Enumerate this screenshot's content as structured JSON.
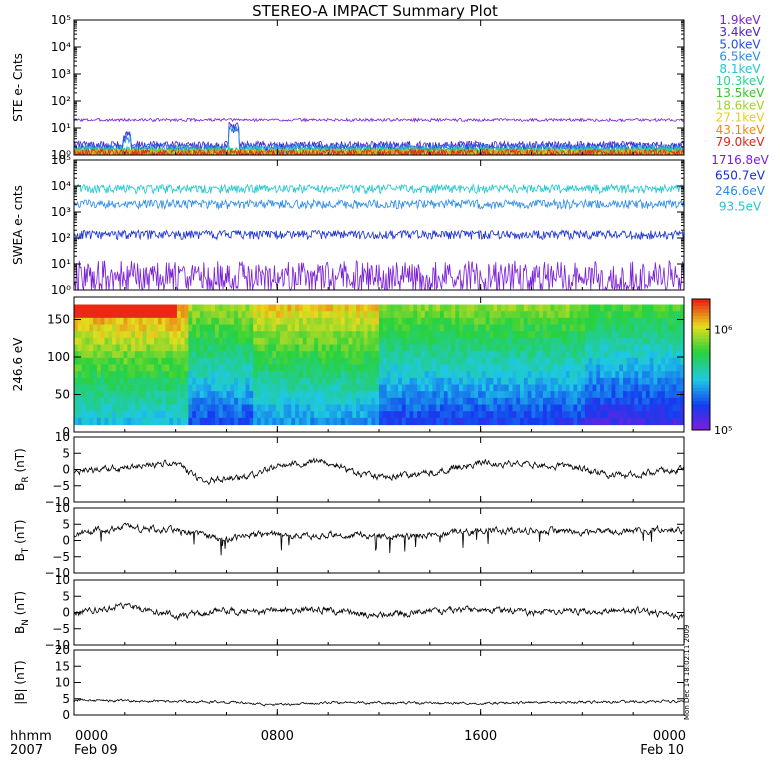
{
  "chart_data": {
    "type": "multi-panel time series",
    "title": "STEREO-A IMPACT Summary Plot",
    "x_axis": {
      "start": "2007-02-09 00:00",
      "end": "2007-02-10 00:00",
      "tick_labels": [
        "0000",
        "0800",
        "1600",
        "0000"
      ],
      "tick_hours": [
        0,
        8,
        16,
        24
      ],
      "date_labels": [
        "Feb 09",
        "Feb 10"
      ],
      "unit_label": "hhmm",
      "year_label": "2007"
    },
    "panels": [
      {
        "id": "ste",
        "ylabel": "STE e- Cnts",
        "scale": "log",
        "ylim": [
          1,
          100000
        ],
        "tick_labels": [
          "10⁰",
          "10¹",
          "10²",
          "10³",
          "10⁴",
          "10⁵"
        ],
        "series": [
          {
            "name": "1.9keV",
            "color": "#7a1fd6",
            "level": 20
          },
          {
            "name": "3.4keV",
            "color": "#4b22c8",
            "level": 2.0
          },
          {
            "name": "5.0keV",
            "color": "#1f4fe0",
            "level": 1.7
          },
          {
            "name": "6.5keV",
            "color": "#2a8be6",
            "level": 1.5
          },
          {
            "name": "8.1keV",
            "color": "#21c6cf",
            "level": 1.3
          },
          {
            "name": "10.3keV",
            "color": "#27d58c",
            "level": 1.15
          },
          {
            "name": "13.5keV",
            "color": "#33c92c",
            "level": 1.1
          },
          {
            "name": "18.6keV",
            "color": "#9fd421",
            "level": 1.05
          },
          {
            "name": "27.1keV",
            "color": "#e1d01e",
            "level": 1.02
          },
          {
            "name": "43.1keV",
            "color": "#ee8a10",
            "level": 1.01
          },
          {
            "name": "79.0keV",
            "color": "#e0241b",
            "level": 1.0
          }
        ]
      },
      {
        "id": "swea",
        "ylabel": "SWEA e- cnts",
        "scale": "log",
        "ylim": [
          1,
          100000
        ],
        "tick_labels": [
          "10⁰",
          "10¹",
          "10²",
          "10³",
          "10⁴",
          "10⁵"
        ],
        "series": [
          {
            "name": "1716.8eV",
            "color": "#7a1fd6",
            "level": 3
          },
          {
            "name": "650.7eV",
            "color": "#1a2fd0",
            "level": 120
          },
          {
            "name": "246.6eV",
            "color": "#2a8be6",
            "level": 1800
          },
          {
            "name": "93.5eV",
            "color": "#21c6cf",
            "level": 7000
          }
        ]
      },
      {
        "id": "pad",
        "ylabel": "246.6 eV",
        "type": "heatmap",
        "scale": "linear",
        "ylim": [
          0,
          180
        ],
        "tick_labels": [
          "0",
          "50",
          "100",
          "150"
        ],
        "tick_values": [
          0,
          50,
          100,
          150
        ],
        "colorbar": {
          "scale": "log",
          "range": [
            100000,
            2000000
          ],
          "tick_labels": [
            "10⁵",
            "10⁶"
          ]
        }
      },
      {
        "id": "br",
        "ylabel": "B_R (nT)",
        "ylabel_main": "B",
        "ylabel_sub": "R",
        "ylabel_unit": "(nT)",
        "scale": "linear",
        "ylim": [
          -10,
          10
        ],
        "tick_labels": [
          "−10",
          "−5",
          "0",
          "5",
          "10"
        ],
        "tick_values": [
          -10,
          -5,
          0,
          5,
          10
        ],
        "trend": [
          [
            0,
            -1
          ],
          [
            2,
            0.5
          ],
          [
            4,
            2
          ],
          [
            5,
            -3.5
          ],
          [
            6,
            -3
          ],
          [
            7,
            -2
          ],
          [
            8,
            1.5
          ],
          [
            10,
            2.5
          ],
          [
            11,
            -1
          ],
          [
            12,
            -2.5
          ],
          [
            14,
            -1
          ],
          [
            16,
            2
          ],
          [
            18,
            1.5
          ],
          [
            20,
            0.5
          ],
          [
            21,
            -2
          ],
          [
            22,
            -1.5
          ],
          [
            24,
            0
          ]
        ]
      },
      {
        "id": "bt",
        "ylabel": "B_T (nT)",
        "ylabel_main": "B",
        "ylabel_sub": "T",
        "ylabel_unit": "(nT)",
        "scale": "linear",
        "ylim": [
          -10,
          10
        ],
        "tick_labels": [
          "−10",
          "−5",
          "0",
          "5",
          "10"
        ],
        "tick_values": [
          -10,
          -5,
          0,
          5,
          10
        ],
        "trend": [
          [
            0,
            2
          ],
          [
            2,
            4
          ],
          [
            4,
            3
          ],
          [
            6,
            0
          ],
          [
            7,
            2
          ],
          [
            9,
            1.5
          ],
          [
            11,
            2
          ],
          [
            13,
            1
          ],
          [
            15,
            2.5
          ],
          [
            17,
            3
          ],
          [
            19,
            3
          ],
          [
            21,
            2.5
          ],
          [
            24,
            3.5
          ]
        ]
      },
      {
        "id": "bn",
        "ylabel": "B_N (nT)",
        "ylabel_main": "B",
        "ylabel_sub": "N",
        "ylabel_unit": "(nT)",
        "scale": "linear",
        "ylim": [
          -10,
          10
        ],
        "tick_labels": [
          "−10",
          "−5",
          "0",
          "5",
          "10"
        ],
        "tick_values": [
          -10,
          -5,
          0,
          5,
          10
        ],
        "trend": [
          [
            0,
            0
          ],
          [
            2,
            2
          ],
          [
            4,
            -1
          ],
          [
            6,
            0.5
          ],
          [
            8,
            0.5
          ],
          [
            10,
            1
          ],
          [
            12,
            -1
          ],
          [
            14,
            0.5
          ],
          [
            16,
            1
          ],
          [
            18,
            0
          ],
          [
            20,
            0.5
          ],
          [
            22,
            0.5
          ],
          [
            24,
            -1
          ]
        ]
      },
      {
        "id": "bmag",
        "ylabel": "|B| (nT)",
        "ylabel_main": "|B| (nT)",
        "ylabel_sub": "",
        "ylabel_unit": "",
        "scale": "linear",
        "ylim": [
          0,
          20
        ],
        "tick_labels": [
          "0",
          "5",
          "10",
          "15",
          "20"
        ],
        "tick_values": [
          0,
          5,
          10,
          15,
          20
        ],
        "trend": [
          [
            0,
            4.5
          ],
          [
            4,
            4.2
          ],
          [
            6,
            4
          ],
          [
            8,
            3.2
          ],
          [
            10,
            3.8
          ],
          [
            12,
            3.7
          ],
          [
            16,
            3.6
          ],
          [
            20,
            4.0
          ],
          [
            24,
            4.2
          ]
        ]
      }
    ],
    "side_note": "Mon Dec 14 18:02:11 2009"
  }
}
